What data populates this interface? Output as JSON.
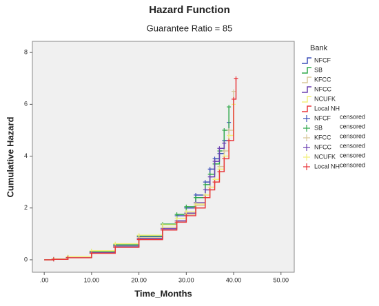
{
  "chart_data": {
    "type": "step",
    "title": "Hazard Function",
    "subtitle": "Guarantee Ratio = 85",
    "x_label": "Time_Months",
    "y_label": "Cumulative Hazard",
    "legend_title": "Bank",
    "censored_label": "censored",
    "x": [
      0,
      2,
      5,
      10,
      15,
      20,
      25,
      28,
      30,
      32,
      34,
      35,
      36,
      37,
      38,
      39,
      40,
      40.5
    ],
    "series": [
      {
        "name": "NFCF",
        "color": "#3b4fb8",
        "values": [
          0,
          0.03,
          0.1,
          0.3,
          0.55,
          0.9,
          1.35,
          1.7,
          2.0,
          2.5,
          3.0,
          3.5,
          3.9,
          4.1,
          4.6,
          5.3,
          null,
          null
        ]
      },
      {
        "name": "SB",
        "color": "#2fa84a",
        "values": [
          0,
          0.03,
          0.1,
          0.32,
          0.58,
          0.92,
          1.38,
          1.75,
          2.05,
          2.4,
          2.9,
          3.3,
          3.7,
          4.2,
          5.0,
          5.9,
          null,
          null
        ]
      },
      {
        "name": "KFCC",
        "color": "#d8c89a",
        "values": [
          0,
          0.02,
          0.09,
          0.28,
          0.52,
          0.85,
          1.25,
          1.5,
          1.75,
          2.1,
          2.5,
          2.8,
          3.1,
          3.6,
          4.2,
          5.0,
          6.5,
          null
        ]
      },
      {
        "name": "NFCC",
        "color": "#6a3fb0",
        "values": [
          0,
          0.02,
          0.09,
          0.27,
          0.5,
          0.82,
          1.2,
          1.5,
          1.8,
          2.2,
          2.7,
          3.2,
          3.8,
          4.3,
          4.5,
          null,
          null,
          null
        ]
      },
      {
        "name": "NCUFK",
        "color": "#f2ef7a",
        "values": [
          0,
          0.03,
          0.12,
          0.35,
          0.62,
          0.95,
          1.35,
          1.6,
          1.85,
          2.15,
          2.5,
          2.8,
          3.1,
          3.5,
          4.0,
          4.8,
          6.0,
          null
        ]
      },
      {
        "name": "Local NH",
        "color": "#e8363a",
        "values": [
          0,
          0.02,
          0.08,
          0.25,
          0.48,
          0.78,
          1.15,
          1.45,
          1.7,
          2.0,
          2.4,
          2.7,
          3.0,
          3.4,
          3.9,
          4.6,
          6.2,
          7.0
        ]
      }
    ],
    "xlim": [
      -2.5,
      52.8
    ],
    "ylim": [
      -0.48,
      8.43
    ],
    "xticks": [
      {
        "value": 0,
        "label": ".00"
      },
      {
        "value": 10,
        "label": "10.00"
      },
      {
        "value": 20,
        "label": "20.00"
      },
      {
        "value": 30,
        "label": "30.00"
      },
      {
        "value": 40,
        "label": "40.00"
      },
      {
        "value": 50,
        "label": "50.00"
      }
    ],
    "yticks": [
      0,
      2,
      4,
      6,
      8
    ],
    "grid": false
  }
}
